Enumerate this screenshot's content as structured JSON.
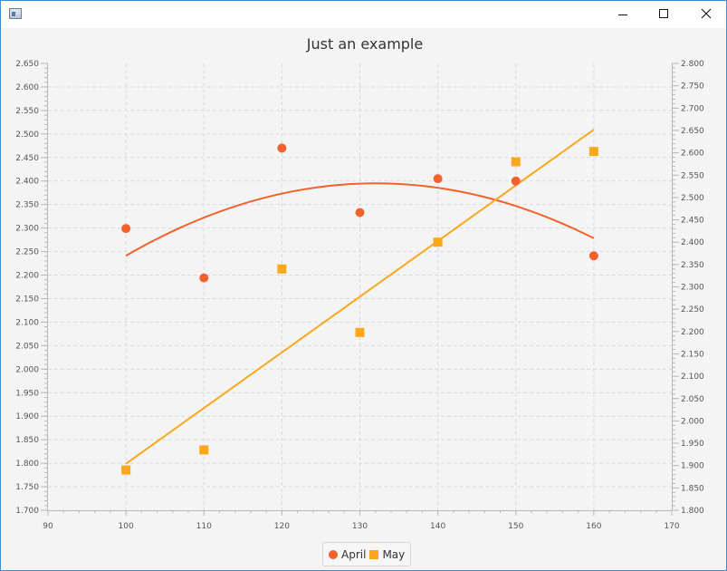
{
  "window": {
    "controls": [
      "minimize",
      "maximize",
      "close"
    ]
  },
  "chart_data": {
    "type": "scatter",
    "title": "Just an example",
    "xlabel": "",
    "ylabel_left": "",
    "ylabel_right": "",
    "xlim": [
      90,
      170
    ],
    "x_ticks": [
      90,
      100,
      110,
      120,
      130,
      140,
      150,
      160,
      170
    ],
    "x_minor_step": 2,
    "ylim_left": [
      1.7,
      2.65
    ],
    "y_left_ticks": [
      "1.700",
      "1.750",
      "1.800",
      "1.850",
      "1.900",
      "1.950",
      "2.000",
      "2.050",
      "2.100",
      "2.150",
      "2.200",
      "2.250",
      "2.300",
      "2.350",
      "2.400",
      "2.450",
      "2.500",
      "2.550",
      "2.600",
      "2.650"
    ],
    "y_left_minor_step": 0.01,
    "ylim_right": [
      1.8,
      2.8
    ],
    "y_right_ticks": [
      "1.800",
      "1.850",
      "1.900",
      "1.950",
      "2.000",
      "2.050",
      "2.100",
      "2.150",
      "2.200",
      "2.250",
      "2.300",
      "2.350",
      "2.400",
      "2.450",
      "2.500",
      "2.550",
      "2.600",
      "2.650",
      "2.700",
      "2.750",
      "2.800"
    ],
    "y_right_minor_step": 0.01,
    "grid": true,
    "legend_position": "bottom-center",
    "series": [
      {
        "name": "April",
        "axis": "left",
        "marker": "circle",
        "color": "#f3622d",
        "x": [
          100,
          110,
          120,
          130,
          140,
          150,
          160
        ],
        "y": [
          2.299,
          2.194,
          2.47,
          2.333,
          2.405,
          2.4,
          2.241
        ],
        "fit": "quadratic"
      },
      {
        "name": "May",
        "axis": "right",
        "marker": "square",
        "color": "#fba71b",
        "x": [
          100,
          110,
          120,
          130,
          140,
          150,
          160
        ],
        "y": [
          1.89,
          1.935,
          2.34,
          2.198,
          2.4,
          2.58,
          2.603
        ],
        "fit": "linear"
      }
    ]
  }
}
